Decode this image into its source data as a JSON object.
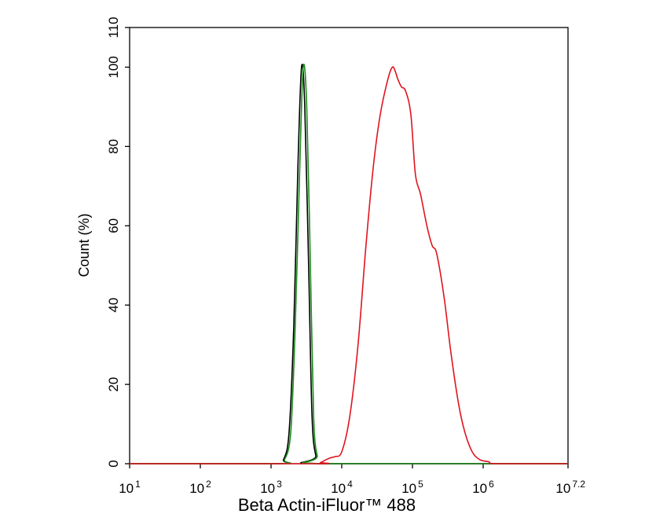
{
  "chart_data": {
    "type": "line",
    "title": "",
    "xlabel": "Beta Actin-iFluor™ 488",
    "ylabel": "Count  (%)",
    "x_scale": "log",
    "xlim": [
      10,
      15848931.92
    ],
    "ylim": [
      0,
      110
    ],
    "x_ticks": [
      {
        "value": 10,
        "base": "10",
        "exp": "1"
      },
      {
        "value": 100,
        "base": "10",
        "exp": "2"
      },
      {
        "value": 1000,
        "base": "10",
        "exp": "3"
      },
      {
        "value": 10000,
        "base": "10",
        "exp": "4"
      },
      {
        "value": 100000,
        "base": "10",
        "exp": "5"
      },
      {
        "value": 1000000,
        "base": "10",
        "exp": "6"
      },
      {
        "value": 15848931.92,
        "base": "10",
        "exp": "7.2"
      }
    ],
    "y_ticks": [
      {
        "value": 0,
        "label": "0"
      },
      {
        "value": 20,
        "label": "20"
      },
      {
        "value": 40,
        "label": "40"
      },
      {
        "value": 60,
        "label": "60"
      },
      {
        "value": 80,
        "label": "80"
      },
      {
        "value": 100,
        "label": "100"
      },
      {
        "value": 110,
        "label": "110"
      }
    ],
    "grid": false,
    "legend": "none",
    "series": [
      {
        "color": "#000000",
        "points": [
          [
            10,
            0
          ],
          [
            1200,
            0
          ],
          [
            1500,
            1
          ],
          [
            1800,
            8
          ],
          [
            2100,
            35
          ],
          [
            2400,
            75
          ],
          [
            2700,
            100
          ],
          [
            3000,
            90
          ],
          [
            3400,
            50
          ],
          [
            3800,
            12
          ],
          [
            4300,
            2
          ],
          [
            5000,
            0
          ],
          [
            15848931.92,
            0
          ]
        ]
      },
      {
        "color": "#1a8c1a",
        "points": [
          [
            10,
            0
          ],
          [
            1250,
            0
          ],
          [
            1550,
            1
          ],
          [
            1900,
            8
          ],
          [
            2200,
            35
          ],
          [
            2550,
            75
          ],
          [
            2850,
            100
          ],
          [
            3200,
            90
          ],
          [
            3600,
            50
          ],
          [
            4000,
            12
          ],
          [
            4500,
            2
          ],
          [
            5300,
            0
          ],
          [
            15848931.92,
            0
          ]
        ]
      },
      {
        "color": "#e0141e",
        "points": [
          [
            10,
            0
          ],
          [
            4000,
            0
          ],
          [
            5000,
            0.3
          ],
          [
            6000,
            1
          ],
          [
            7000,
            1.5
          ],
          [
            8000,
            1.8
          ],
          [
            10000,
            3
          ],
          [
            13000,
            12
          ],
          [
            17000,
            30
          ],
          [
            22000,
            55
          ],
          [
            28000,
            75
          ],
          [
            35000,
            88
          ],
          [
            45000,
            97
          ],
          [
            52000,
            100
          ],
          [
            57000,
            99
          ],
          [
            62000,
            97
          ],
          [
            70000,
            95
          ],
          [
            80000,
            94
          ],
          [
            95000,
            88
          ],
          [
            110000,
            73
          ],
          [
            130000,
            68
          ],
          [
            160000,
            60
          ],
          [
            190000,
            55
          ],
          [
            220000,
            53
          ],
          [
            280000,
            42
          ],
          [
            350000,
            28
          ],
          [
            450000,
            15
          ],
          [
            550000,
            8
          ],
          [
            700000,
            3
          ],
          [
            900000,
            1
          ],
          [
            1200000,
            0.5
          ],
          [
            1600000,
            0
          ],
          [
            15848931.92,
            0
          ]
        ]
      }
    ]
  }
}
